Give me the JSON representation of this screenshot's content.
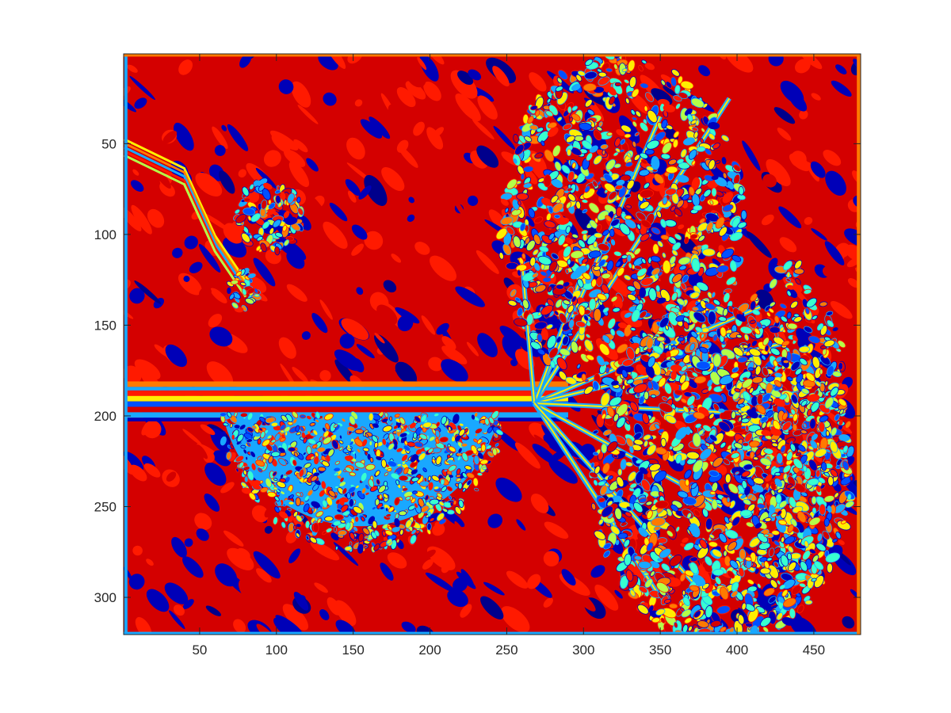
{
  "chart_data": {
    "type": "heatmap",
    "title": "",
    "xlabel": "",
    "ylabel": "",
    "image_width": 480,
    "image_height": 320,
    "xlim": [
      0.5,
      480.5
    ],
    "ylim": [
      0.5,
      320.5
    ],
    "y_direction": "reverse",
    "colormap": "jet",
    "grid": false,
    "legend": "none",
    "x_ticks": [
      50,
      100,
      150,
      200,
      250,
      300,
      350,
      400,
      450
    ],
    "y_ticks": [
      50,
      100,
      150,
      200,
      250,
      300
    ],
    "x_tick_labels": [
      "50",
      "100",
      "150",
      "200",
      "250",
      "300",
      "350",
      "400",
      "450"
    ],
    "y_tick_labels": [
      "50",
      "100",
      "150",
      "200",
      "250",
      "300"
    ],
    "palette": {
      "dark_red": "#d40000",
      "red": "#ff1a00",
      "orange": "#ff7a00",
      "yellow": "#ffee00",
      "lime": "#b4ff48",
      "cyan": "#38ffd0",
      "light_blue": "#19a8ff",
      "blue": "#0050ff",
      "navy": "#0000b8",
      "dark_navy": "#00008c"
    },
    "regions": [
      {
        "name": "leaf-left-diagonal",
        "x": [
          0,
          110
        ],
        "y": [
          45,
          140
        ]
      },
      {
        "name": "horizontal-stem",
        "x": [
          0,
          300
        ],
        "y": [
          180,
          205
        ]
      },
      {
        "name": "half-disc-flower",
        "x": [
          65,
          245
        ],
        "y": [
          200,
          275
        ]
      },
      {
        "name": "upper-flower-cluster",
        "x": [
          240,
          420
        ],
        "y": [
          0,
          190
        ]
      },
      {
        "name": "right-flower-cluster",
        "x": [
          300,
          470
        ],
        "y": [
          140,
          320
        ]
      }
    ]
  }
}
